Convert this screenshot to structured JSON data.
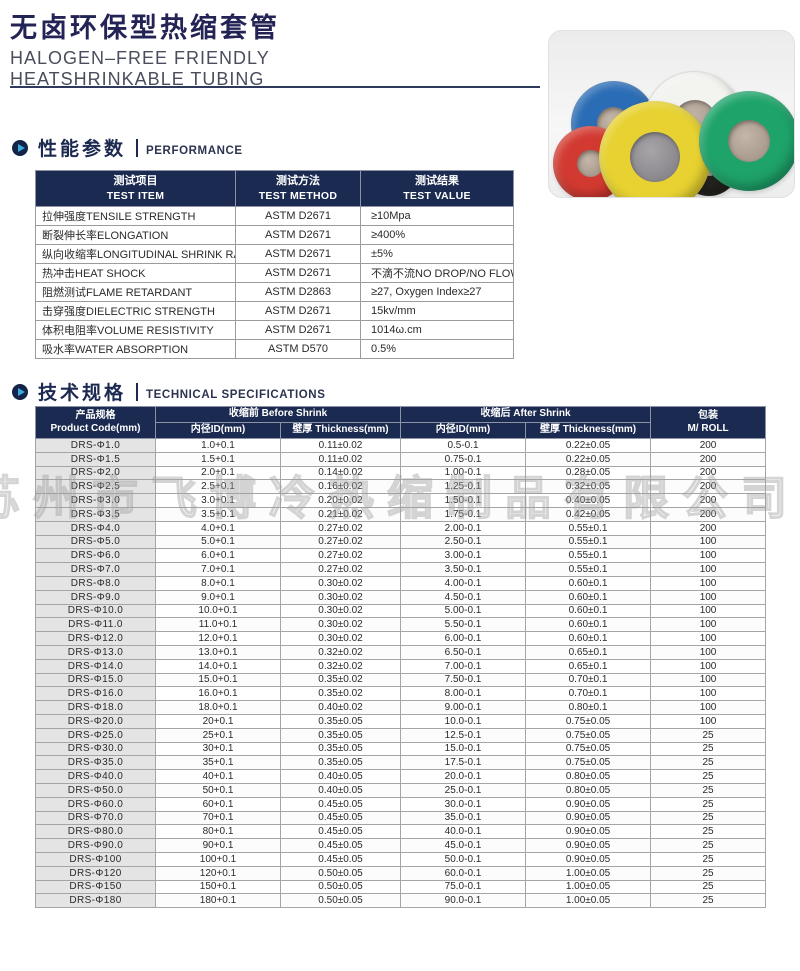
{
  "header": {
    "title_cn": "无卤环保型热缩套管",
    "title_en_line1": "HALOGEN–FREE FRIENDLY",
    "title_en_line2": "HEATSHRINKABLE TUBING"
  },
  "watermark_text": "苏州市飞博冷热缩制品有限公司",
  "photo": {
    "description": "六色热缩套管卷实物图",
    "rolls": [
      {
        "name": "blue",
        "color": "#2a6cb5"
      },
      {
        "name": "white",
        "color": "#f3f3f0"
      },
      {
        "name": "red",
        "color": "#d23a31"
      },
      {
        "name": "black",
        "color": "#24231f"
      },
      {
        "name": "yellow",
        "color": "#e7d231"
      },
      {
        "name": "green",
        "color": "#1ea36a"
      }
    ]
  },
  "sections": {
    "performance": {
      "title_cn": "性能参数",
      "title_en": "PERFORMANCE"
    },
    "specs": {
      "title_cn": "技术规格",
      "title_en": "TECHNICAL SPECIFICATIONS"
    }
  },
  "performance_table": {
    "headers": [
      {
        "cn": "测试项目",
        "en": "TEST ITEM"
      },
      {
        "cn": "测试方法",
        "en": "TEST METHOD"
      },
      {
        "cn": "测试结果",
        "en": "TEST VALUE"
      }
    ],
    "rows": [
      [
        "拉伸强度TENSILE STRENGTH",
        "ASTM D2671",
        "≥10Mpa"
      ],
      [
        "断裂伸长率ELONGATION",
        "ASTM D2671",
        "≥400%"
      ],
      [
        "纵向收缩率LONGITUDINAL SHRINK RATIO",
        "ASTM D2671",
        "±5%"
      ],
      [
        "热冲击HEAT SHOCK",
        "ASTM D2671",
        "不滴不流NO DROP/NO FLOW"
      ],
      [
        "阻燃测试FLAME RETARDANT",
        "ASTM D2863",
        "≥27, Oxygen Index≥27"
      ],
      [
        "击穿强度DIELECTRIC STRENGTH",
        "ASTM D2671",
        "15kv/mm"
      ],
      [
        "体积电阻率VOLUME RESISTIVITY",
        "ASTM D2671",
        "1014ω.cm"
      ],
      [
        "吸水率WATER ABSORPTION",
        "ASTM D570",
        "0.5%"
      ]
    ]
  },
  "spec_table": {
    "col_product": {
      "cn": "产品规格",
      "en": "Product Code(mm)"
    },
    "group_before": "收缩前 Before Shrink",
    "group_after": "收缩后 After Shrink",
    "col_id_before": "内径ID(mm)",
    "col_th_before": "壁厚 Thickness(mm)",
    "col_id_after": "内径ID(mm)",
    "col_th_after": "壁厚 Thickness(mm)",
    "col_roll": {
      "cn": "包装",
      "en": "M/ ROLL"
    },
    "rows": [
      [
        "DRS-Φ1.0",
        "1.0+0.1",
        "0.11±0.02",
        "0.5-0.1",
        "0.22±0.05",
        "200"
      ],
      [
        "DRS-Φ1.5",
        "1.5+0.1",
        "0.11±0.02",
        "0.75-0.1",
        "0.22±0.05",
        "200"
      ],
      [
        "DRS-Φ2.0",
        "2.0+0.1",
        "0.14±0.02",
        "1.00-0.1",
        "0.28±0.05",
        "200"
      ],
      [
        "DRS-Φ2.5",
        "2.5+0.1",
        "0.16±0.02",
        "1.25-0.1",
        "0.32±0.05",
        "200"
      ],
      [
        "DRS-Φ3.0",
        "3.0+0.1",
        "0.20±0.02",
        "1.50-0.1",
        "0.40±0.05",
        "200"
      ],
      [
        "DRS-Φ3.5",
        "3.5+0.1",
        "0.21±0.02",
        "1.75-0.1",
        "0.42±0.05",
        "200"
      ],
      [
        "DRS-Φ4.0",
        "4.0+0.1",
        "0.27±0.02",
        "2.00-0.1",
        "0.55±0.1",
        "200"
      ],
      [
        "DRS-Φ5.0",
        "5.0+0.1",
        "0.27±0.02",
        "2.50-0.1",
        "0.55±0.1",
        "100"
      ],
      [
        "DRS-Φ6.0",
        "6.0+0.1",
        "0.27±0.02",
        "3.00-0.1",
        "0.55±0.1",
        "100"
      ],
      [
        "DRS-Φ7.0",
        "7.0+0.1",
        "0.27±0.02",
        "3.50-0.1",
        "0.55±0.1",
        "100"
      ],
      [
        "DRS-Φ8.0",
        "8.0+0.1",
        "0.30±0.02",
        "4.00-0.1",
        "0.60±0.1",
        "100"
      ],
      [
        "DRS-Φ9.0",
        "9.0+0.1",
        "0.30±0.02",
        "4.50-0.1",
        "0.60±0.1",
        "100"
      ],
      [
        "DRS-Φ10.0",
        "10.0+0.1",
        "0.30±0.02",
        "5.00-0.1",
        "0.60±0.1",
        "100"
      ],
      [
        "DRS-Φ11.0",
        "11.0+0.1",
        "0.30±0.02",
        "5.50-0.1",
        "0.60±0.1",
        "100"
      ],
      [
        "DRS-Φ12.0",
        "12.0+0.1",
        "0.30±0.02",
        "6.00-0.1",
        "0.60±0.1",
        "100"
      ],
      [
        "DRS-Φ13.0",
        "13.0+0.1",
        "0.32±0.02",
        "6.50-0.1",
        "0.65±0.1",
        "100"
      ],
      [
        "DRS-Φ14.0",
        "14.0+0.1",
        "0.32±0.02",
        "7.00-0.1",
        "0.65±0.1",
        "100"
      ],
      [
        "DRS-Φ15.0",
        "15.0+0.1",
        "0.35±0.02",
        "7.50-0.1",
        "0.70±0.1",
        "100"
      ],
      [
        "DRS-Φ16.0",
        "16.0+0.1",
        "0.35±0.02",
        "8.00-0.1",
        "0.70±0.1",
        "100"
      ],
      [
        "DRS-Φ18.0",
        "18.0+0.1",
        "0.40±0.02",
        "9.00-0.1",
        "0.80±0.1",
        "100"
      ],
      [
        "DRS-Φ20.0",
        "20+0.1",
        "0.35±0.05",
        "10.0-0.1",
        "0.75±0.05",
        "100"
      ],
      [
        "DRS-Φ25.0",
        "25+0.1",
        "0.35±0.05",
        "12.5-0.1",
        "0.75±0.05",
        "25"
      ],
      [
        "DRS-Φ30.0",
        "30+0.1",
        "0.35±0.05",
        "15.0-0.1",
        "0.75±0.05",
        "25"
      ],
      [
        "DRS-Φ35.0",
        "35+0.1",
        "0.35±0.05",
        "17.5-0.1",
        "0.75±0.05",
        "25"
      ],
      [
        "DRS-Φ40.0",
        "40+0.1",
        "0.40±0.05",
        "20.0-0.1",
        "0.80±0.05",
        "25"
      ],
      [
        "DRS-Φ50.0",
        "50+0.1",
        "0.40±0.05",
        "25.0-0.1",
        "0.80±0.05",
        "25"
      ],
      [
        "DRS-Φ60.0",
        "60+0.1",
        "0.45±0.05",
        "30.0-0.1",
        "0.90±0.05",
        "25"
      ],
      [
        "DRS-Φ70.0",
        "70+0.1",
        "0.45±0.05",
        "35.0-0.1",
        "0.90±0.05",
        "25"
      ],
      [
        "DRS-Φ80.0",
        "80+0.1",
        "0.45±0.05",
        "40.0-0.1",
        "0.90±0.05",
        "25"
      ],
      [
        "DRS-Φ90.0",
        "90+0.1",
        "0.45±0.05",
        "45.0-0.1",
        "0.90±0.05",
        "25"
      ],
      [
        "DRS-Φ100",
        "100+0.1",
        "0.45±0.05",
        "50.0-0.1",
        "0.90±0.05",
        "25"
      ],
      [
        "DRS-Φ120",
        "120+0.1",
        "0.50±0.05",
        "60.0-0.1",
        "1.00±0.05",
        "25"
      ],
      [
        "DRS-Φ150",
        "150+0.1",
        "0.50±0.05",
        "75.0-0.1",
        "1.00±0.05",
        "25"
      ],
      [
        "DRS-Φ180",
        "180+0.1",
        "0.50±0.05",
        "90.0-0.1",
        "1.00±0.05",
        "25"
      ]
    ]
  },
  "colors": {
    "accent_navy": "#1b2a50",
    "title_navy": "#232355",
    "icon_blue": "#39a9de",
    "code_cell_bg": "#e4e4e4",
    "grid_line": "#a5a5a5"
  }
}
